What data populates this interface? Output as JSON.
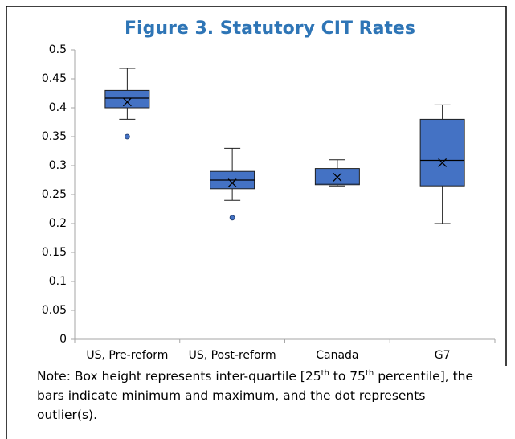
{
  "chart_data": {
    "type": "box",
    "title": "Figure 3. Statutory CIT Rates",
    "categories": [
      "US, Pre-reform",
      "US, Post-reform",
      "Canada",
      "G7"
    ],
    "color": "#4472c4",
    "boxes": [
      {
        "min": 0.38,
        "q1": 0.4,
        "median": 0.4167,
        "q3": 0.43,
        "max": 0.468,
        "mean": 0.41,
        "outliers": [
          0.35
        ]
      },
      {
        "min": 0.24,
        "q1": 0.26,
        "median": 0.275,
        "q3": 0.29,
        "max": 0.33,
        "mean": 0.27,
        "outliers": [
          0.21
        ]
      },
      {
        "min": 0.265,
        "q1": 0.267,
        "median": 0.27,
        "q3": 0.295,
        "max": 0.31,
        "mean": 0.28,
        "outliers": []
      },
      {
        "min": 0.2,
        "q1": 0.265,
        "median": 0.309,
        "q3": 0.38,
        "max": 0.405,
        "mean": 0.305,
        "outliers": []
      }
    ],
    "ylim": [
      0,
      0.5
    ],
    "yticks": [
      0,
      0.05,
      0.1,
      0.15,
      0.2,
      0.25,
      0.3,
      0.35,
      0.4,
      0.45,
      0.5
    ],
    "grid": false,
    "note_parts": [
      "Note: Box height represents inter-quartile [25",
      "th",
      " to 75",
      "th",
      " percentile], the bars indicate minimum and maximum, and the dot represents outlier(s)."
    ]
  }
}
